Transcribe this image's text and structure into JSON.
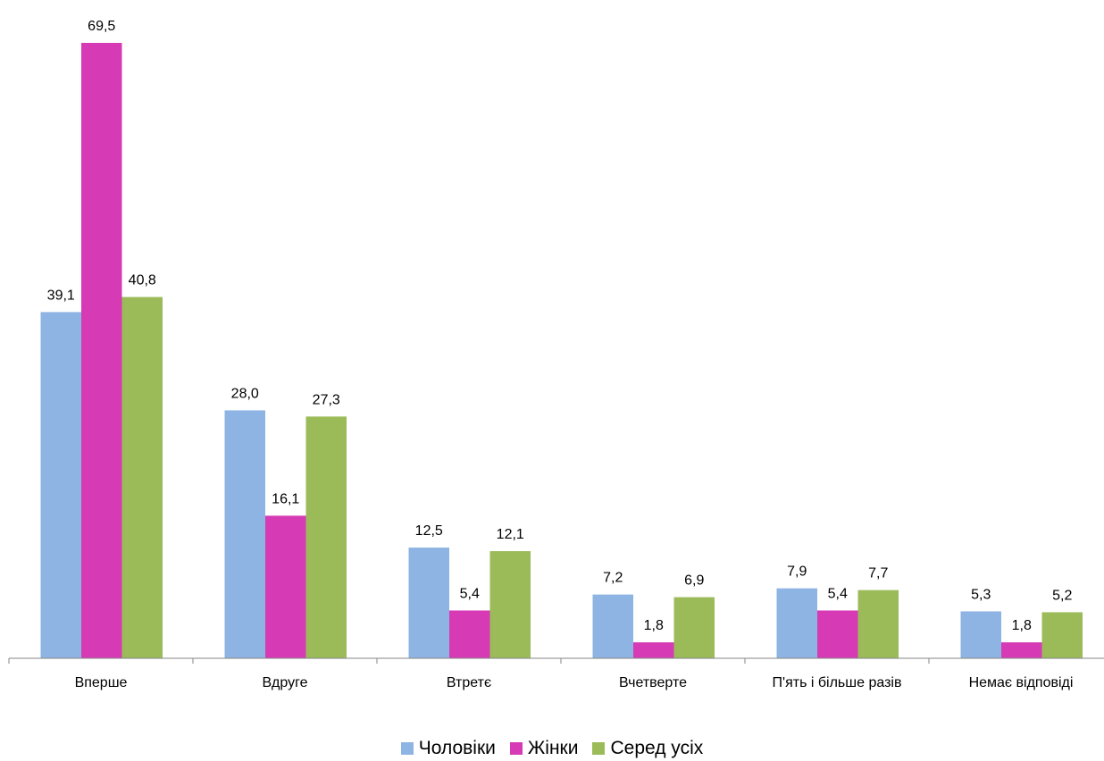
{
  "chart_data": {
    "type": "bar",
    "title": "",
    "xlabel": "",
    "ylabel": "",
    "ylim": [
      0,
      69.5
    ],
    "grid": false,
    "legend_position": "bottom",
    "categories": [
      "Вперше",
      "Вдруге",
      "Втретє",
      "Вчетверте",
      "П'ять і більше разів",
      "Немає відповіді"
    ],
    "series": [
      {
        "name": "Чоловіки",
        "color": "#8eb4e3",
        "values": [
          39.1,
          28.0,
          12.5,
          7.2,
          7.9,
          5.3
        ],
        "labels": [
          "39,1",
          "28,0",
          "12,5",
          "7,2",
          "7,9",
          "5,3"
        ]
      },
      {
        "name": "Жінки",
        "color": "#d63ab5",
        "values": [
          69.5,
          16.1,
          5.4,
          1.8,
          5.4,
          1.8
        ],
        "labels": [
          "69,5",
          "16,1",
          "5,4",
          "1,8",
          "5,4",
          "1,8"
        ]
      },
      {
        "name": "Серед усіх",
        "color": "#9bbb59",
        "values": [
          40.8,
          27.3,
          12.1,
          6.9,
          7.7,
          5.2
        ],
        "labels": [
          "40,8",
          "27,3",
          "12,1",
          "6,9",
          "7,7",
          "5,2"
        ]
      }
    ]
  }
}
